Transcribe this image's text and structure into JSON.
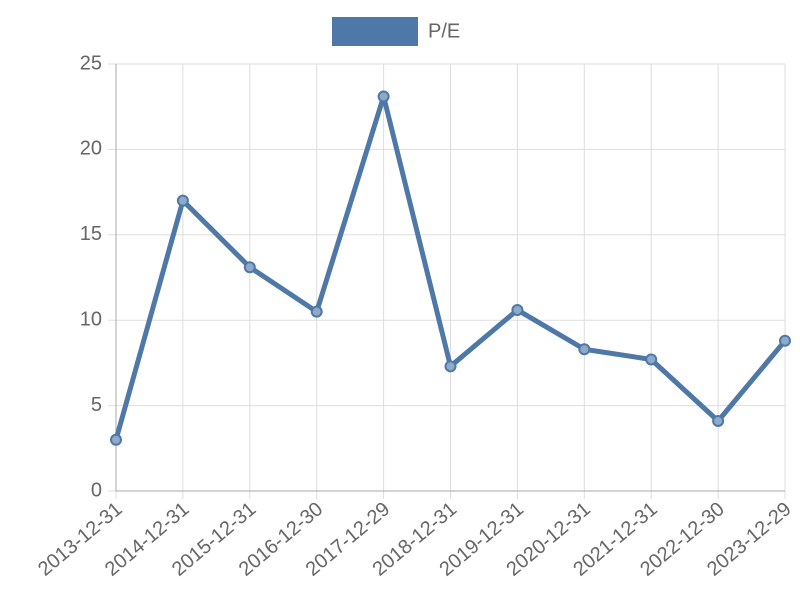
{
  "chart_data": {
    "type": "line",
    "categories": [
      "2013-12-31",
      "2014-12-31",
      "2015-12-31",
      "2016-12-30",
      "2017-12-29",
      "2018-12-31",
      "2019-12-31",
      "2020-12-31",
      "2021-12-31",
      "2022-12-30",
      "2023-12-29"
    ],
    "series": [
      {
        "name": "P/E",
        "color": "#4e78a8",
        "values": [
          3.0,
          17.0,
          13.1,
          10.5,
          23.1,
          7.3,
          10.6,
          8.3,
          7.7,
          4.1,
          8.8
        ]
      }
    ],
    "ylim": [
      0,
      25
    ],
    "yticks": [
      0,
      5,
      10,
      15,
      20,
      25
    ],
    "grid": true,
    "legend": "top"
  }
}
